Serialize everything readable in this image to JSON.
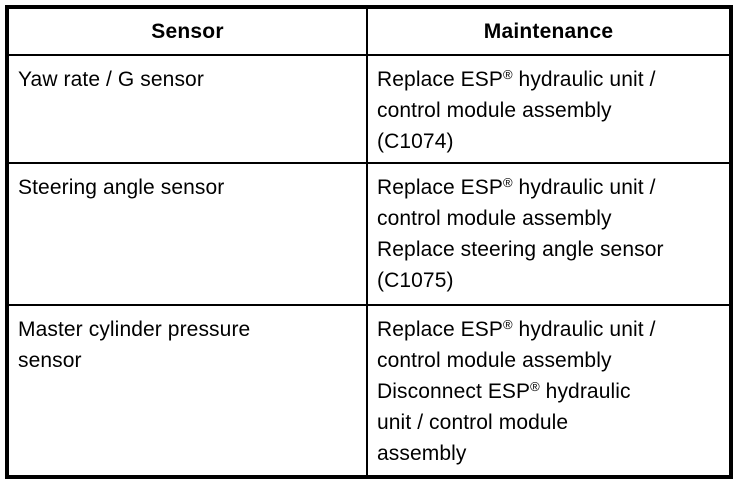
{
  "colors": {
    "border": "#000000",
    "background": "#ffffff",
    "text": "#000000"
  },
  "table": {
    "headers": [
      {
        "label": "Sensor"
      },
      {
        "label": "Maintenance"
      }
    ],
    "rows": [
      {
        "sensor_lines": [
          "Yaw rate / G sensor"
        ],
        "maintenance_lines": [
          "Replace ESP® hydraulic unit /",
          "control module assembly",
          "(C1074)"
        ]
      },
      {
        "sensor_lines": [
          "Steering angle sensor"
        ],
        "maintenance_lines": [
          "Replace ESP® hydraulic unit /",
          "control module assembly",
          "Replace steering angle sensor",
          "(C1075)"
        ]
      },
      {
        "sensor_lines": [
          "Master cylinder pressure",
          "sensor"
        ],
        "maintenance_lines": [
          "Replace ESP® hydraulic unit /",
          "control module assembly",
          "Disconnect ESP® hydraulic",
          "unit / control module",
          "assembly"
        ]
      }
    ]
  }
}
